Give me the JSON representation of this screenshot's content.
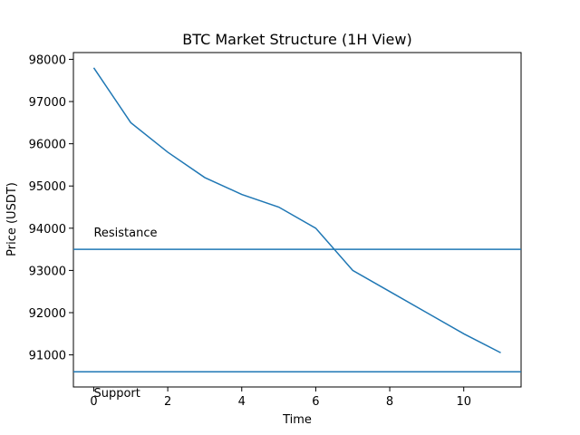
{
  "chart_data": {
    "type": "line",
    "title": "BTC Market Structure (1H View)",
    "x_label": "Time",
    "y_label": "Price (USDT)",
    "x": [
      0,
      1,
      2,
      3,
      4,
      5,
      6,
      7,
      8,
      9,
      10,
      11
    ],
    "series": [
      {
        "color": "#1f77b4",
        "values": [
          97800,
          96500,
          95800,
          95200,
          94800,
          94500,
          94000,
          93000,
          92500,
          92000,
          91500,
          91050
        ]
      }
    ],
    "hlines": [
      {
        "label": "Resistance",
        "value": 93500,
        "color": "#1f77b4"
      },
      {
        "label": "Support",
        "value": 90600,
        "color": "#1f77b4"
      }
    ],
    "annotations": [
      {
        "text": "Resistance",
        "x": 0,
        "y": 93800
      },
      {
        "text": "Support",
        "x": 0,
        "y": 90000
      }
    ],
    "xlim": [
      -0.55,
      11.55
    ],
    "xticks": [
      0,
      2,
      4,
      6,
      8,
      10
    ],
    "ylim": [
      90240,
      98160
    ],
    "yticks": [
      91000,
      92000,
      93000,
      94000,
      95000,
      96000,
      97000,
      98000
    ],
    "grid": false
  }
}
